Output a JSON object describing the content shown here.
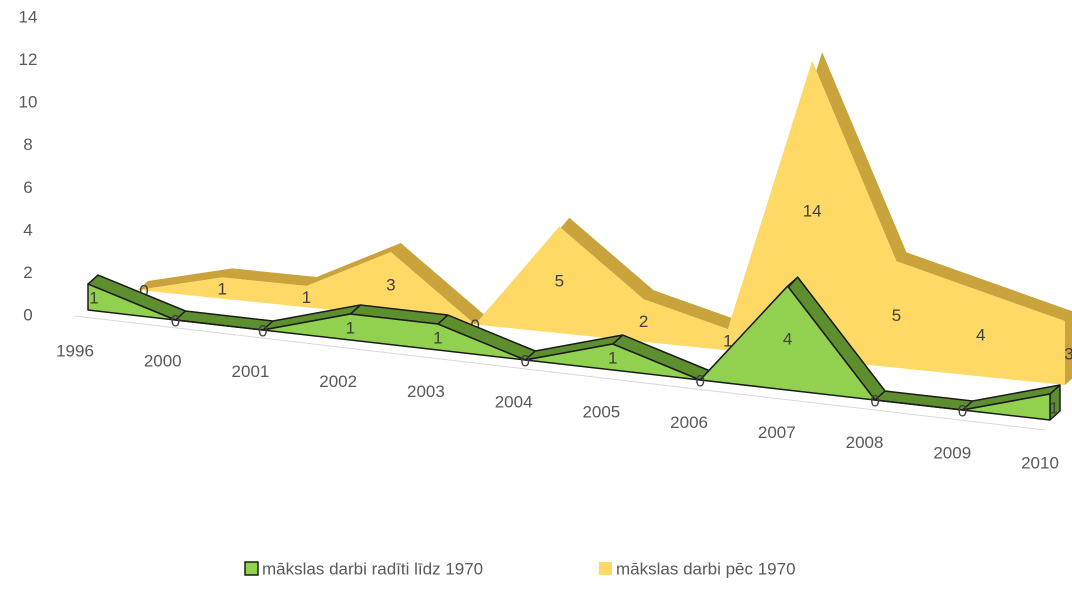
{
  "chart_data": {
    "type": "area3d",
    "categories": [
      "1996",
      "2000",
      "2001",
      "2002",
      "2003",
      "2004",
      "2005",
      "2006",
      "2007",
      "2008",
      "2009",
      "2010"
    ],
    "series": [
      {
        "name": "mākslas darbi radīti līdz 1970",
        "color": "#92d050",
        "values": [
          1,
          0,
          0,
          1,
          1,
          0,
          1,
          0,
          4,
          0,
          0,
          1
        ]
      },
      {
        "name": "mākslas darbi pēc 1970",
        "color": "#ffd966",
        "values": [
          0,
          1,
          1,
          3,
          0,
          5,
          2,
          1,
          14,
          5,
          4,
          3
        ]
      }
    ],
    "ylim": [
      0,
      14
    ],
    "yticks": [
      0,
      2,
      4,
      6,
      8,
      10,
      12,
      14
    ],
    "legend": "bottom"
  }
}
